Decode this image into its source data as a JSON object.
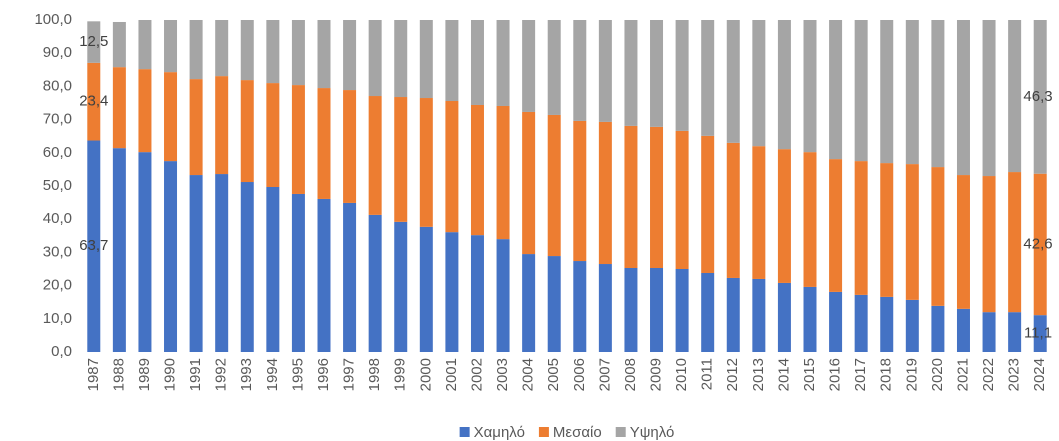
{
  "chart_data": {
    "type": "stacked_bar",
    "categories": [
      "1987",
      "1988",
      "1989",
      "1990",
      "1991",
      "1992",
      "1993",
      "1994",
      "1995",
      "1996",
      "1997",
      "1998",
      "1999",
      "2000",
      "2001",
      "2002",
      "2003",
      "2004",
      "2005",
      "2006",
      "2007",
      "2008",
      "2009",
      "2010",
      "2011",
      "2012",
      "2013",
      "2014",
      "2015",
      "2016",
      "2017",
      "2018",
      "2019",
      "2020",
      "2021",
      "2022",
      "2023",
      "2024"
    ],
    "series": [
      {
        "name": "Χαμηλό",
        "color": "#4472c4",
        "values": [
          63.7,
          61.4,
          60.2,
          57.5,
          53.3,
          53.6,
          51.2,
          49.7,
          47.6,
          46.1,
          44.9,
          41.3,
          39.2,
          37.7,
          36.1,
          35.2,
          34.0,
          29.5,
          28.9,
          27.4,
          26.5,
          25.3,
          25.3,
          25.0,
          23.8,
          22.3,
          22.0,
          20.8,
          19.6,
          18.1,
          17.2,
          16.6,
          15.7,
          13.9,
          13.0,
          12.0,
          12.0,
          11.1
        ],
        "value_labels": [
          "63,7",
          null,
          null,
          null,
          null,
          null,
          null,
          null,
          null,
          null,
          null,
          null,
          null,
          null,
          null,
          null,
          null,
          null,
          null,
          null,
          null,
          null,
          null,
          null,
          null,
          null,
          null,
          null,
          null,
          null,
          null,
          null,
          null,
          null,
          null,
          null,
          null,
          "11,1"
        ]
      },
      {
        "name": "Μεσαίο",
        "color": "#ed7d31",
        "values": [
          23.4,
          24.4,
          25.0,
          26.8,
          28.9,
          29.5,
          30.7,
          31.3,
          32.8,
          33.4,
          34.0,
          35.8,
          37.6,
          38.8,
          39.5,
          39.2,
          40.1,
          42.8,
          42.5,
          42.2,
          42.8,
          42.8,
          42.5,
          41.6,
          41.3,
          40.7,
          40.0,
          40.3,
          40.6,
          40.0,
          40.3,
          40.3,
          40.9,
          41.8,
          40.3,
          41.0,
          42.2,
          42.6
        ],
        "value_labels": [
          "23,4",
          null,
          null,
          null,
          null,
          null,
          null,
          null,
          null,
          null,
          null,
          null,
          null,
          null,
          null,
          null,
          null,
          null,
          null,
          null,
          null,
          null,
          null,
          null,
          null,
          null,
          null,
          null,
          null,
          null,
          null,
          null,
          null,
          null,
          null,
          null,
          null,
          "42,6"
        ]
      },
      {
        "name": "Υψηλό",
        "color": "#a5a5a5",
        "values": [
          12.5,
          13.6,
          14.8,
          15.7,
          17.8,
          16.9,
          18.1,
          19.0,
          19.6,
          20.5,
          21.1,
          22.9,
          23.2,
          23.5,
          24.4,
          25.6,
          25.9,
          27.7,
          28.6,
          30.4,
          30.7,
          31.9,
          32.2,
          33.4,
          34.9,
          37.0,
          38.0,
          38.9,
          39.8,
          41.9,
          42.5,
          43.1,
          43.4,
          44.3,
          46.7,
          47.0,
          45.8,
          46.3
        ],
        "value_labels": [
          "12,5",
          null,
          null,
          null,
          null,
          null,
          null,
          null,
          null,
          null,
          null,
          null,
          null,
          null,
          null,
          null,
          null,
          null,
          null,
          null,
          null,
          null,
          null,
          null,
          null,
          null,
          null,
          null,
          null,
          null,
          null,
          null,
          null,
          null,
          null,
          null,
          null,
          "46,3"
        ]
      }
    ],
    "ylim": [
      0,
      100
    ],
    "yticks": [
      {
        "value": 0,
        "label": "0,0"
      },
      {
        "value": 10,
        "label": "10,0"
      },
      {
        "value": 20,
        "label": "20,0"
      },
      {
        "value": 30,
        "label": "30,0"
      },
      {
        "value": 40,
        "label": "40,0"
      },
      {
        "value": 50,
        "label": "50,0"
      },
      {
        "value": 60,
        "label": "60,0"
      },
      {
        "value": 70,
        "label": "70,0"
      },
      {
        "value": 80,
        "label": "80,0"
      },
      {
        "value": 90,
        "label": "90,0"
      },
      {
        "value": 100,
        "label": "100,0"
      }
    ],
    "legend": "bottom"
  }
}
